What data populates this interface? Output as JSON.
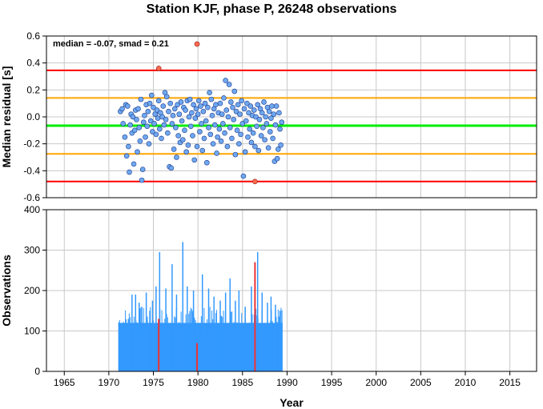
{
  "chart_data": {
    "title": "Station KJF, phase P, 26248 observations",
    "colors": {
      "point": "#6fa8f0",
      "outlier": "#ff6a4d",
      "median_line": "#00ee00",
      "smad_line": "#ffa500",
      "outer_line": "#ff0000",
      "bar": "#3399ff",
      "bar_highlight": "#ee3333",
      "grid": "#c8c8c8"
    },
    "panels": [
      {
        "type": "scatter",
        "ylabel": "Median residual [s]",
        "annotation": "median = -0.07, smad = 0.21",
        "ylim": [
          -0.6,
          0.6
        ],
        "yticks": [
          "-0.6",
          "-0.4",
          "-0.2",
          "0.0",
          "0.2",
          "0.4",
          "0.6"
        ],
        "hlines": {
          "median": -0.065,
          "smad_band": [
            -0.275,
            0.14
          ],
          "outer_band": [
            -0.48,
            0.345
          ]
        },
        "points": [
          [
            1971.3,
            0.04
          ],
          [
            1971.5,
            0.06
          ],
          [
            1971.6,
            -0.05
          ],
          [
            1971.8,
            -0.15
          ],
          [
            1971.9,
            0.09
          ],
          [
            1972.0,
            -0.29
          ],
          [
            1972.1,
            0.08
          ],
          [
            1972.2,
            -0.22
          ],
          [
            1972.3,
            -0.41
          ],
          [
            1972.4,
            -0.06
          ],
          [
            1972.5,
            0.02
          ],
          [
            1972.6,
            -0.12
          ],
          [
            1972.7,
            0.0
          ],
          [
            1972.8,
            -0.35
          ],
          [
            1972.9,
            -0.1
          ],
          [
            1973.0,
            0.05
          ],
          [
            1973.1,
            -0.02
          ],
          [
            1973.2,
            -0.26
          ],
          [
            1973.3,
            0.06
          ],
          [
            1973.4,
            -0.08
          ],
          [
            1973.5,
            -0.18
          ],
          [
            1973.6,
            0.13
          ],
          [
            1973.7,
            -0.47
          ],
          [
            1973.8,
            -0.39
          ],
          [
            1973.9,
            -0.04
          ],
          [
            1974.0,
            0.01
          ],
          [
            1974.1,
            -0.15
          ],
          [
            1974.2,
            0.09
          ],
          [
            1974.3,
            -0.07
          ],
          [
            1974.4,
            0.04
          ],
          [
            1974.5,
            -0.2
          ],
          [
            1974.6,
            0.1
          ],
          [
            1974.7,
            -0.03
          ],
          [
            1974.8,
            0.16
          ],
          [
            1974.9,
            -0.11
          ],
          [
            1975.0,
            0.07
          ],
          [
            1975.1,
            -0.05
          ],
          [
            1975.2,
            0.02
          ],
          [
            1975.3,
            -0.13
          ],
          [
            1975.4,
            0.05
          ],
          [
            1975.5,
            -0.01
          ],
          [
            1975.6,
            0.12
          ],
          [
            1975.7,
            -0.09
          ],
          [
            1975.8,
            0.03
          ],
          [
            1975.9,
            -0.16
          ],
          [
            1976.0,
            0.0
          ],
          [
            1976.1,
            0.08
          ],
          [
            1976.2,
            -0.06
          ],
          [
            1976.3,
            0.18
          ],
          [
            1976.4,
            -0.02
          ],
          [
            1976.5,
            0.15
          ],
          [
            1976.6,
            -0.12
          ],
          [
            1976.7,
            0.04
          ],
          [
            1976.8,
            -0.37
          ],
          [
            1976.9,
            0.1
          ],
          [
            1977.0,
            -0.38
          ],
          [
            1977.1,
            -0.05
          ],
          [
            1977.2,
            0.01
          ],
          [
            1977.3,
            -0.24
          ],
          [
            1977.4,
            0.06
          ],
          [
            1977.5,
            -0.08
          ],
          [
            1977.6,
            -0.3
          ],
          [
            1977.7,
            0.09
          ],
          [
            1977.8,
            -0.14
          ],
          [
            1977.9,
            0.02
          ],
          [
            1978.0,
            -0.19
          ],
          [
            1978.1,
            0.11
          ],
          [
            1978.2,
            -0.03
          ],
          [
            1978.3,
            -0.17
          ],
          [
            1978.4,
            0.07
          ],
          [
            1978.5,
            -0.1
          ],
          [
            1978.6,
            0.05
          ],
          [
            1978.7,
            -0.26
          ],
          [
            1978.8,
            0.12
          ],
          [
            1978.9,
            -0.21
          ],
          [
            1979.0,
            0.0
          ],
          [
            1979.1,
            0.13
          ],
          [
            1979.2,
            -0.07
          ],
          [
            1979.3,
            0.03
          ],
          [
            1979.4,
            -0.14
          ],
          [
            1979.5,
            0.09
          ],
          [
            1979.6,
            -0.32
          ],
          [
            1979.7,
            -0.01
          ],
          [
            1979.8,
            0.06
          ],
          [
            1979.9,
            -0.22
          ],
          [
            1980.0,
            0.02
          ],
          [
            1980.1,
            0.12
          ],
          [
            1980.2,
            -0.11
          ],
          [
            1980.3,
            0.08
          ],
          [
            1980.4,
            -0.05
          ],
          [
            1980.5,
            -0.25
          ],
          [
            1980.6,
            0.04
          ],
          [
            1980.7,
            -0.16
          ],
          [
            1980.8,
            0.1
          ],
          [
            1980.9,
            -0.03
          ],
          [
            1981.0,
            -0.34
          ],
          [
            1981.1,
            0.07
          ],
          [
            1981.2,
            -0.08
          ],
          [
            1981.3,
            0.18
          ],
          [
            1981.4,
            -0.13
          ],
          [
            1981.5,
            0.13
          ],
          [
            1981.6,
            0.01
          ],
          [
            1981.7,
            -0.2
          ],
          [
            1981.8,
            0.06
          ],
          [
            1981.9,
            -0.06
          ],
          [
            1982.0,
            0.09
          ],
          [
            1982.1,
            -0.27
          ],
          [
            1982.2,
            -0.15
          ],
          [
            1982.3,
            0.03
          ],
          [
            1982.4,
            -0.09
          ],
          [
            1982.5,
            0.1
          ],
          [
            1982.6,
            -0.18
          ],
          [
            1982.7,
            0.02
          ],
          [
            1982.8,
            -0.05
          ],
          [
            1982.9,
            0.14
          ],
          [
            1983.0,
            -0.12
          ],
          [
            1983.1,
            0.27
          ],
          [
            1983.2,
            0.05
          ],
          [
            1983.3,
            -0.22
          ],
          [
            1983.4,
            0.0
          ],
          [
            1983.5,
            0.24
          ],
          [
            1983.6,
            -0.08
          ],
          [
            1983.7,
            0.11
          ],
          [
            1983.8,
            -0.16
          ],
          [
            1983.9,
            0.07
          ],
          [
            1984.0,
            -0.02
          ],
          [
            1984.1,
            0.19
          ],
          [
            1984.2,
            -0.28
          ],
          [
            1984.3,
            0.04
          ],
          [
            1984.4,
            -0.1
          ],
          [
            1984.5,
            0.09
          ],
          [
            1984.6,
            -0.2
          ],
          [
            1984.7,
            0.02
          ],
          [
            1984.8,
            -0.13
          ],
          [
            1984.9,
            0.12
          ],
          [
            1985.0,
            -0.05
          ],
          [
            1985.1,
            -0.44
          ],
          [
            1985.2,
            0.06
          ],
          [
            1985.3,
            -0.26
          ],
          [
            1985.4,
            -0.03
          ],
          [
            1985.5,
            0.1
          ],
          [
            1985.6,
            -0.15
          ],
          [
            1985.7,
            0.03
          ],
          [
            1985.8,
            -0.09
          ],
          [
            1985.9,
            0.08
          ],
          [
            1986.0,
            -0.19
          ],
          [
            1986.1,
            0.01
          ],
          [
            1986.2,
            -0.12
          ],
          [
            1986.3,
            0.05
          ],
          [
            1986.4,
            -0.22
          ],
          [
            1986.5,
            0.0
          ],
          [
            1986.6,
            -0.07
          ],
          [
            1986.7,
            0.09
          ],
          [
            1986.8,
            -0.25
          ],
          [
            1986.9,
            -0.02
          ],
          [
            1987.0,
            0.06
          ],
          [
            1987.1,
            -0.14
          ],
          [
            1987.2,
            0.03
          ],
          [
            1987.3,
            -0.08
          ],
          [
            1987.4,
            0.11
          ],
          [
            1987.5,
            -0.17
          ],
          [
            1987.6,
            0.0
          ],
          [
            1987.7,
            -0.05
          ],
          [
            1987.8,
            0.07
          ],
          [
            1987.9,
            -0.23
          ],
          [
            1988.0,
            0.04
          ],
          [
            1988.1,
            -0.11
          ],
          [
            1988.2,
            -0.01
          ],
          [
            1988.3,
            0.08
          ],
          [
            1988.4,
            -0.16
          ],
          [
            1988.5,
            0.02
          ],
          [
            1988.6,
            -0.33
          ],
          [
            1988.7,
            -0.06
          ],
          [
            1988.8,
            0.08
          ],
          [
            1988.9,
            -0.31
          ],
          [
            1989.0,
            -0.24
          ],
          [
            1989.1,
            0.03
          ],
          [
            1989.2,
            -0.09
          ],
          [
            1989.3,
            -0.21
          ],
          [
            1989.4,
            -0.04
          ]
        ],
        "outliers": [
          [
            1975.6,
            0.36
          ],
          [
            1979.9,
            0.54
          ],
          [
            1986.4,
            -0.48
          ]
        ]
      },
      {
        "type": "bar",
        "ylabel": "Observations",
        "xlabel": "Year",
        "ylim": [
          0,
          400
        ],
        "yticks": [
          "0",
          "100",
          "200",
          "300",
          "400"
        ],
        "xlim": [
          1963,
          2018
        ],
        "xticks": [
          "1965",
          "1970",
          "1975",
          "1980",
          "1985",
          "1990",
          "1995",
          "2000",
          "2005",
          "2010",
          "2015"
        ],
        "bar_range": [
          1971.1,
          1989.5
        ],
        "bar_base": 120,
        "spikes": [
          [
            1971.3,
            80
          ],
          [
            1971.6,
            110
          ],
          [
            1972.2,
            130
          ],
          [
            1972.6,
            190
          ],
          [
            1973.0,
            190
          ],
          [
            1973.4,
            170
          ],
          [
            1973.7,
            160
          ],
          [
            1974.2,
            195
          ],
          [
            1974.6,
            150
          ],
          [
            1974.9,
            175
          ],
          [
            1975.3,
            210
          ],
          [
            1975.7,
            295
          ],
          [
            1976.4,
            205
          ],
          [
            1977.1,
            265
          ],
          [
            1977.6,
            190
          ],
          [
            1978.3,
            320
          ],
          [
            1978.8,
            210
          ],
          [
            1979.5,
            200
          ],
          [
            1980.5,
            240
          ],
          [
            1981.2,
            205
          ],
          [
            1981.8,
            185
          ],
          [
            1982.5,
            175
          ],
          [
            1983.1,
            195
          ],
          [
            1983.6,
            230
          ],
          [
            1984.2,
            175
          ],
          [
            1984.6,
            200
          ],
          [
            1985.3,
            160
          ],
          [
            1986.0,
            210
          ],
          [
            1986.7,
            295
          ],
          [
            1987.2,
            195
          ],
          [
            1987.8,
            170
          ],
          [
            1988.2,
            185
          ],
          [
            1988.7,
            165
          ],
          [
            1989.2,
            150
          ]
        ],
        "highlight": [
          [
            1975.6,
            130
          ],
          [
            1979.9,
            70
          ],
          [
            1986.4,
            270
          ]
        ]
      }
    ]
  }
}
